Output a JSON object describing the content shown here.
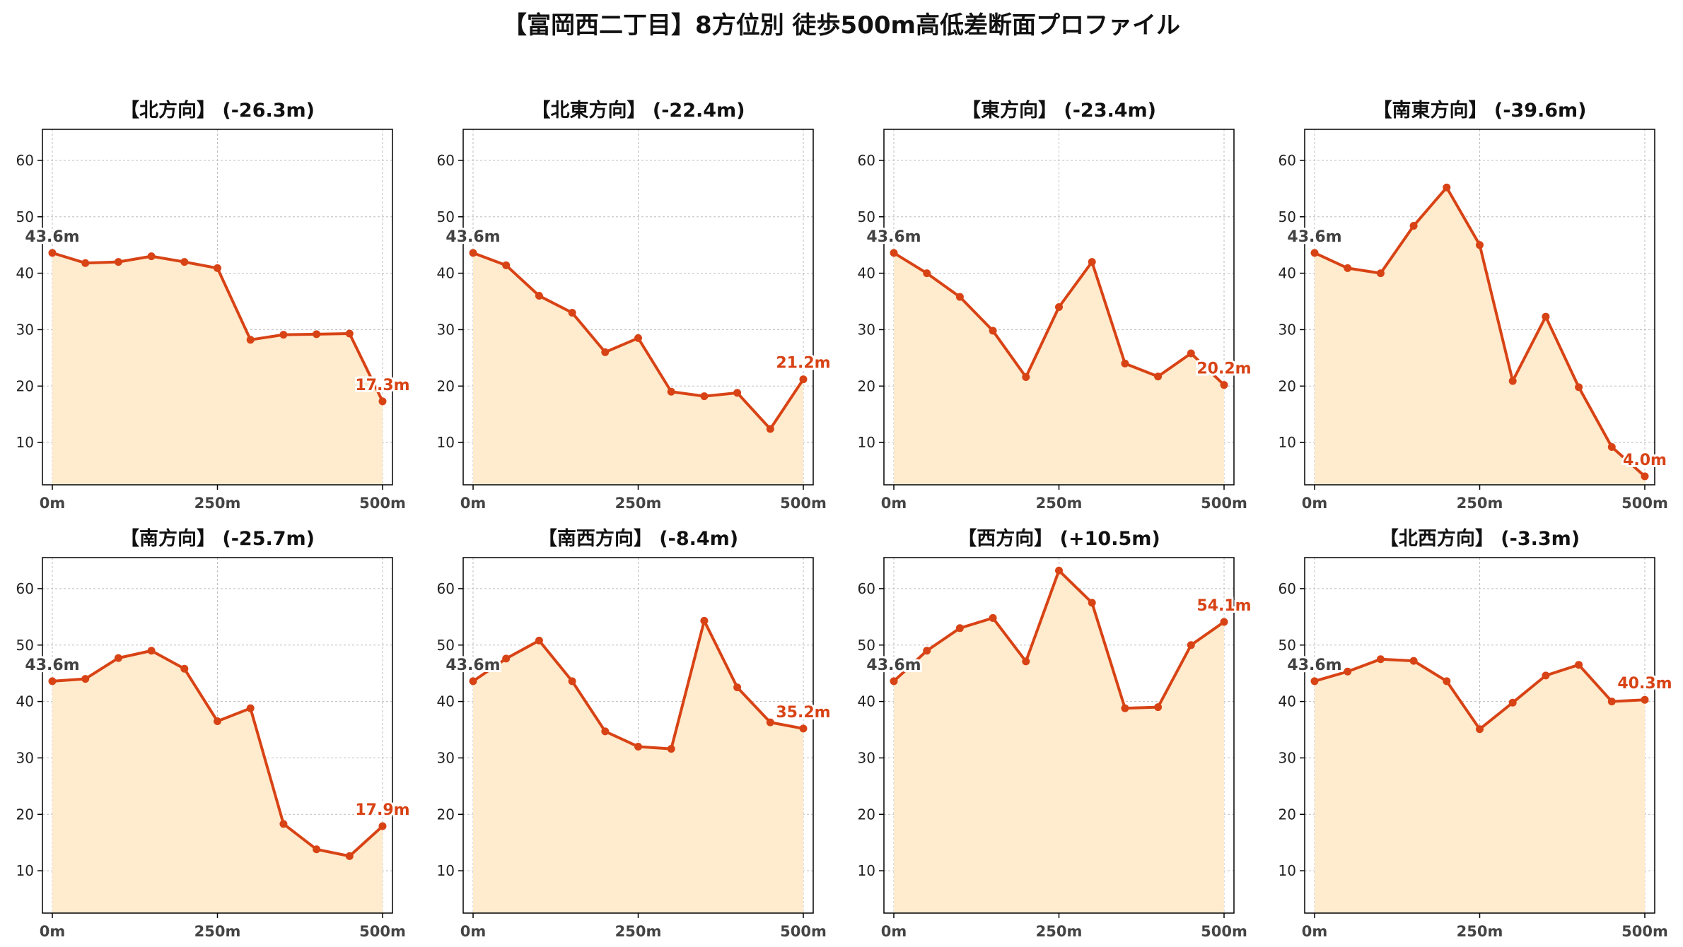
{
  "title": "【富岡西二丁目】8方位別 徒歩500m高低差断面プロファイル",
  "colors": {
    "line": "#D84315",
    "fill": "#FFEBCD",
    "grid": "#BDBDBD",
    "start_label": "#424242",
    "end_label": "#D84315"
  },
  "chart_data": [
    {
      "type": "area",
      "title": "【北方向】 (-26.3m)",
      "x": [
        0,
        50,
        100,
        150,
        200,
        250,
        300,
        350,
        400,
        450,
        500
      ],
      "values": [
        43.6,
        41.8,
        42.0,
        43.0,
        42.0,
        40.9,
        28.2,
        29.1,
        29.2,
        29.3,
        17.3
      ],
      "start_label": "43.6m",
      "end_label": "17.3m",
      "xticks": [
        "0m",
        "250m",
        "500m"
      ],
      "yticks": [
        "10",
        "20",
        "30",
        "40",
        "50",
        "60"
      ],
      "xlim": [
        -15,
        515
      ],
      "ylim": [
        2.5,
        65.5
      ],
      "grid": true
    },
    {
      "type": "area",
      "title": "【北東方向】 (-22.4m)",
      "x": [
        0,
        50,
        100,
        150,
        200,
        250,
        300,
        350,
        400,
        450,
        500
      ],
      "values": [
        43.6,
        41.4,
        36.0,
        33.0,
        26.0,
        28.5,
        19.0,
        18.2,
        18.8,
        12.4,
        21.2
      ],
      "start_label": "43.6m",
      "end_label": "21.2m",
      "xticks": [
        "0m",
        "250m",
        "500m"
      ],
      "yticks": [
        "10",
        "20",
        "30",
        "40",
        "50",
        "60"
      ],
      "xlim": [
        -15,
        515
      ],
      "ylim": [
        2.5,
        65.5
      ],
      "grid": true
    },
    {
      "type": "area",
      "title": "【東方向】 (-23.4m)",
      "x": [
        0,
        50,
        100,
        150,
        200,
        250,
        300,
        350,
        400,
        450,
        500
      ],
      "values": [
        43.6,
        40.0,
        35.8,
        29.8,
        21.6,
        34.0,
        42.0,
        24.0,
        21.7,
        25.8,
        20.2
      ],
      "start_label": "43.6m",
      "end_label": "20.2m",
      "xticks": [
        "0m",
        "250m",
        "500m"
      ],
      "yticks": [
        "10",
        "20",
        "30",
        "40",
        "50",
        "60"
      ],
      "xlim": [
        -15,
        515
      ],
      "ylim": [
        2.5,
        65.5
      ],
      "grid": true
    },
    {
      "type": "area",
      "title": "【南東方向】 (-39.6m)",
      "x": [
        0,
        50,
        100,
        150,
        200,
        250,
        300,
        350,
        400,
        450,
        500
      ],
      "values": [
        43.6,
        40.9,
        40.0,
        48.4,
        55.2,
        45.0,
        20.9,
        32.3,
        19.8,
        9.2,
        4.0
      ],
      "start_label": "43.6m",
      "end_label": "4.0m",
      "xticks": [
        "0m",
        "250m",
        "500m"
      ],
      "yticks": [
        "10",
        "20",
        "30",
        "40",
        "50",
        "60"
      ],
      "xlim": [
        -15,
        515
      ],
      "ylim": [
        2.5,
        65.5
      ],
      "grid": true
    },
    {
      "type": "area",
      "title": "【南方向】 (-25.7m)",
      "x": [
        0,
        50,
        100,
        150,
        200,
        250,
        300,
        350,
        400,
        450,
        500
      ],
      "values": [
        43.6,
        44.0,
        47.7,
        49.0,
        45.8,
        36.5,
        38.8,
        18.3,
        13.8,
        12.6,
        17.9
      ],
      "start_label": "43.6m",
      "end_label": "17.9m",
      "xticks": [
        "0m",
        "250m",
        "500m"
      ],
      "yticks": [
        "10",
        "20",
        "30",
        "40",
        "50",
        "60"
      ],
      "xlim": [
        -15,
        515
      ],
      "ylim": [
        2.5,
        65.5
      ],
      "grid": true
    },
    {
      "type": "area",
      "title": "【南西方向】 (-8.4m)",
      "x": [
        0,
        50,
        100,
        150,
        200,
        250,
        300,
        350,
        400,
        450,
        500
      ],
      "values": [
        43.6,
        47.6,
        50.8,
        43.6,
        34.7,
        32.0,
        31.6,
        54.3,
        42.5,
        36.3,
        35.2
      ],
      "start_label": "43.6m",
      "end_label": "35.2m",
      "xticks": [
        "0m",
        "250m",
        "500m"
      ],
      "yticks": [
        "10",
        "20",
        "30",
        "40",
        "50",
        "60"
      ],
      "xlim": [
        -15,
        515
      ],
      "ylim": [
        2.5,
        65.5
      ],
      "grid": true
    },
    {
      "type": "area",
      "title": "【西方向】 (+10.5m)",
      "x": [
        0,
        50,
        100,
        150,
        200,
        250,
        300,
        350,
        400,
        450,
        500
      ],
      "values": [
        43.6,
        49.0,
        53.0,
        54.8,
        47.1,
        63.2,
        57.5,
        38.8,
        39.0,
        50.0,
        54.1
      ],
      "start_label": "43.6m",
      "end_label": "54.1m",
      "xticks": [
        "0m",
        "250m",
        "500m"
      ],
      "yticks": [
        "10",
        "20",
        "30",
        "40",
        "50",
        "60"
      ],
      "xlim": [
        -15,
        515
      ],
      "ylim": [
        2.5,
        65.5
      ],
      "grid": true
    },
    {
      "type": "area",
      "title": "【北西方向】 (-3.3m)",
      "x": [
        0,
        50,
        100,
        150,
        200,
        250,
        300,
        350,
        400,
        450,
        500
      ],
      "values": [
        43.6,
        45.3,
        47.5,
        47.2,
        43.6,
        35.1,
        39.8,
        44.6,
        46.5,
        40.0,
        40.3
      ],
      "start_label": "43.6m",
      "end_label": "40.3m",
      "xticks": [
        "0m",
        "250m",
        "500m"
      ],
      "yticks": [
        "10",
        "20",
        "30",
        "40",
        "50",
        "60"
      ],
      "xlim": [
        -15,
        515
      ],
      "ylim": [
        2.5,
        65.5
      ],
      "grid": true
    }
  ]
}
